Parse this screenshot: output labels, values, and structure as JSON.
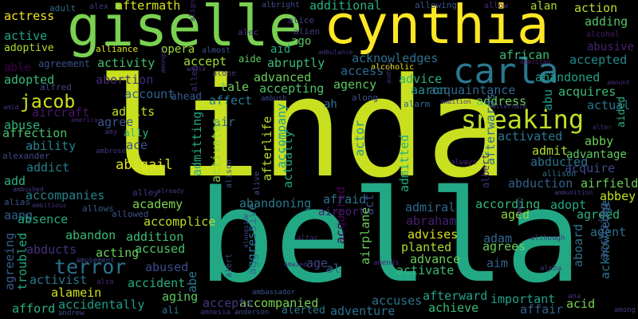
{
  "words": [
    {
      "text": "linda",
      "color": "#c8e020"
    },
    {
      "text": "bella",
      "color": "#22a884"
    },
    {
      "text": "giselle",
      "color": "#7ad151"
    },
    {
      "text": "cynthia",
      "color": "#fde725"
    },
    {
      "text": "carla",
      "color": "#2a788e"
    },
    {
      "text": "sneaking",
      "color": "#bddf26"
    },
    {
      "text": "jacob",
      "color": "#d0e11c"
    },
    {
      "text": "terror",
      "color": "#2c728e"
    },
    {
      "text": "abigail",
      "color": "#e5e419"
    },
    {
      "text": "aftermath",
      "color": "#d8e219"
    },
    {
      "text": "additional",
      "color": "#29af7f"
    },
    {
      "text": "action",
      "color": "#b5de2b"
    },
    {
      "text": "adding",
      "color": "#52c569"
    },
    {
      "text": "actress",
      "color": "#f1e51d"
    },
    {
      "text": "adult",
      "color": "#2e6e8e"
    },
    {
      "text": "alex",
      "color": "#443983"
    },
    {
      "text": "albright",
      "color": "#3e4a89"
    },
    {
      "text": "allowing",
      "color": "#3b528b"
    },
    {
      "text": "allow",
      "color": "#472c7a"
    },
    {
      "text": "alan",
      "color": "#a8db34"
    },
    {
      "text": "active",
      "color": "#21a685"
    },
    {
      "text": "adoptive",
      "color": "#b0dd2f"
    },
    {
      "text": "alliance",
      "color": "#e2e418"
    },
    {
      "text": "almost",
      "color": "#3b528b"
    },
    {
      "text": "alec",
      "color": "#46337e"
    },
    {
      "text": "alien",
      "color": "#443a83"
    },
    {
      "text": "ago",
      "color": "#5ec962"
    },
    {
      "text": "opera",
      "color": "#9fda3a"
    },
    {
      "text": "aid",
      "color": "#25ab82"
    },
    {
      "text": "african",
      "color": "#3dbc74"
    },
    {
      "text": "abusive",
      "color": "#482173"
    },
    {
      "text": "alcohol",
      "color": "#481a6c"
    },
    {
      "text": "able",
      "color": "#440154"
    },
    {
      "text": "agreement",
      "color": "#3b518b"
    },
    {
      "text": "activity",
      "color": "#46c06f"
    },
    {
      "text": "accept",
      "color": "#a2da37"
    },
    {
      "text": "aide",
      "color": "#5cc863"
    },
    {
      "text": "abruptly",
      "color": "#3dbc74"
    },
    {
      "text": "acknowledges",
      "color": "#2c718e"
    },
    {
      "text": "accepted",
      "color": "#228c8d"
    },
    {
      "text": "ambulance",
      "color": "#46337f"
    },
    {
      "text": "alcoholic",
      "color": "#f1e51d"
    },
    {
      "text": "american",
      "color": "#482475"
    },
    {
      "text": "abandoned",
      "color": "#1fa188"
    },
    {
      "text": "adopted",
      "color": "#3aba76"
    },
    {
      "text": "abortion",
      "color": "#482979"
    },
    {
      "text": "advanced",
      "color": "#6ccd5a"
    },
    {
      "text": "access",
      "color": "#2f6c8e"
    },
    {
      "text": "advice",
      "color": "#2ab07f"
    },
    {
      "text": "alfred",
      "color": "#3f4889"
    },
    {
      "text": "account",
      "color": "#33628d"
    },
    {
      "text": "ahead",
      "color": "#38598c"
    },
    {
      "text": "tale",
      "color": "#6ece58"
    },
    {
      "text": "accepting",
      "color": "#50c46a"
    },
    {
      "text": "agency",
      "color": "#5ec962"
    },
    {
      "text": "aaron",
      "color": "#21918c"
    },
    {
      "text": "acquaintance",
      "color": "#31688e"
    },
    {
      "text": "abu",
      "color": "#1e9b8a"
    },
    {
      "text": "abuse",
      "color": "#2db27d"
    },
    {
      "text": "aircraft",
      "color": "#48186a"
    },
    {
      "text": "admits",
      "color": "#c2df23"
    },
    {
      "text": "affect",
      "color": "#2a778e"
    },
    {
      "text": "air",
      "color": "#31688e"
    },
    {
      "text": "alarm",
      "color": "#2f6b8e"
    },
    {
      "text": "ambition",
      "color": "#462f7e"
    },
    {
      "text": "ah",
      "color": "#2c728e"
    },
    {
      "text": "along",
      "color": "#3b518b"
    },
    {
      "text": "address",
      "color": "#6ccd5a"
    },
    {
      "text": "acquires",
      "color": "#3dbc74"
    },
    {
      "text": "actual",
      "color": "#2c738e"
    },
    {
      "text": "aided",
      "color": "#28ae80"
    },
    {
      "text": "affection",
      "color": "#4ac16d"
    },
    {
      "text": "agree",
      "color": "#3a548c"
    },
    {
      "text": "ally",
      "color": "#35b779"
    },
    {
      "text": "amy",
      "color": "#462f7e"
    },
    {
      "text": "ace",
      "color": "#3b518b"
    },
    {
      "text": "activated",
      "color": "#2a788e"
    },
    {
      "text": "abby",
      "color": "#6ece58"
    },
    {
      "text": "afterwards",
      "color": "#31688e"
    },
    {
      "text": "alter",
      "color": "#472f7d"
    },
    {
      "text": "ability",
      "color": "#26828e"
    },
    {
      "text": "alexander",
      "color": "#3f4889"
    },
    {
      "text": "ambrose",
      "color": "#453781"
    },
    {
      "text": "actor",
      "color": "#21918c"
    },
    {
      "text": "admit",
      "color": "#b5de2b"
    },
    {
      "text": "advantage",
      "color": "#5ec962"
    },
    {
      "text": "abducted",
      "color": "#2c728e"
    },
    {
      "text": "addict",
      "color": "#277f8e"
    },
    {
      "text": "admitting",
      "color": "#22a884"
    },
    {
      "text": "activates",
      "color": "#95d840"
    },
    {
      "text": "afterlife",
      "color": "#b8de29"
    },
    {
      "text": "accompany",
      "color": "#1f9e89"
    },
    {
      "text": "admitted",
      "color": "#26ad81"
    },
    {
      "text": "allison",
      "color": "#2d708e"
    },
    {
      "text": "acquire",
      "color": "#3e4a89"
    },
    {
      "text": "add",
      "color": "#2db27d"
    },
    {
      "text": "always",
      "color": "#472a7a"
    },
    {
      "text": "abduction",
      "color": "#34608d"
    },
    {
      "text": "airfield",
      "color": "#6ccd5a"
    },
    {
      "text": "ambushed",
      "color": "#453882"
    },
    {
      "text": "accompanies",
      "color": "#26828e"
    },
    {
      "text": "alley",
      "color": "#453781"
    },
    {
      "text": "already",
      "color": "#453781"
    },
    {
      "text": "alison",
      "color": "#3b528b"
    },
    {
      "text": "actually",
      "color": "#22a884"
    },
    {
      "text": "afraid",
      "color": "#2c728e"
    },
    {
      "text": "albert",
      "color": "#472c7a"
    },
    {
      "text": "ammunition",
      "color": "#453781"
    },
    {
      "text": "abbey",
      "color": "#c5e021"
    },
    {
      "text": "alias",
      "color": "#3b528b"
    },
    {
      "text": "ambitious",
      "color": "#46307e"
    },
    {
      "text": "allows",
      "color": "#38598c"
    },
    {
      "text": "academy",
      "color": "#7fd34e"
    },
    {
      "text": "abandoning",
      "color": "#2a788e"
    },
    {
      "text": "admiral",
      "color": "#31688e"
    },
    {
      "text": "according",
      "color": "#35b779"
    },
    {
      "text": "adopt",
      "color": "#22a884"
    },
    {
      "text": "aang",
      "color": "#365c8d"
    },
    {
      "text": "allowed",
      "color": "#3b528b"
    },
    {
      "text": "airport",
      "color": "#482173"
    },
    {
      "text": "act",
      "color": "#3e4a89"
    },
    {
      "text": "abraham",
      "color": "#481f70"
    },
    {
      "text": "aged",
      "color": "#8fd744"
    },
    {
      "text": "agreed",
      "color": "#2db27d"
    },
    {
      "text": "absence",
      "color": "#25ab82"
    },
    {
      "text": "accomplice",
      "color": "#bddf26"
    },
    {
      "text": "acquired",
      "color": "#440154"
    },
    {
      "text": "agent",
      "color": "#2c728e"
    },
    {
      "text": "abandon",
      "color": "#3aba76"
    },
    {
      "text": "addition",
      "color": "#3dbc74"
    },
    {
      "text": "advises",
      "color": "#d8e219"
    },
    {
      "text": "adam",
      "color": "#31688e"
    },
    {
      "text": "agrees",
      "color": "#6ccd5a"
    },
    {
      "text": "acknowledge",
      "color": "#2c728e"
    },
    {
      "text": "although",
      "color": "#46337e"
    },
    {
      "text": "altar",
      "color": "#472c7a"
    },
    {
      "text": "abducts",
      "color": "#46307e"
    },
    {
      "text": "acting",
      "color": "#6ccd5a"
    },
    {
      "text": "accused",
      "color": "#4ac16d"
    },
    {
      "text": "planted",
      "color": "#a8db34"
    },
    {
      "text": "advance",
      "color": "#6ccd5a"
    },
    {
      "text": "aboard",
      "color": "#2d708e"
    },
    {
      "text": "amusement",
      "color": "#3e4a89"
    },
    {
      "text": "agreeing",
      "color": "#365c8d"
    },
    {
      "text": "troubled",
      "color": "#22a884"
    },
    {
      "text": "abused",
      "color": "#3e4a89"
    },
    {
      "text": "aggressive",
      "color": "#2c728e"
    },
    {
      "text": "age",
      "color": "#404688"
    },
    {
      "text": "al",
      "color": "#31688e"
    },
    {
      "text": "airplane",
      "color": "#6ccd5a"
    },
    {
      "text": "activate",
      "color": "#3aba76"
    },
    {
      "text": "aim",
      "color": "#34608d"
    },
    {
      "text": "accusing",
      "color": "#3b528b"
    },
    {
      "text": "alpha",
      "color": "#463480"
    },
    {
      "text": "activist",
      "color": "#2a788e"
    },
    {
      "text": "also",
      "color": "#472c7a"
    },
    {
      "text": "accident",
      "color": "#26ad81"
    },
    {
      "text": "alert",
      "color": "#3e4a89"
    },
    {
      "text": "amends",
      "color": "#482878"
    },
    {
      "text": "alamein",
      "color": "#d2e21b"
    },
    {
      "text": "aging",
      "color": "#5ec962"
    },
    {
      "text": "abe",
      "color": "#2a788e"
    },
    {
      "text": "ambassador",
      "color": "#3b528b"
    },
    {
      "text": "accompanied",
      "color": "#7ad151"
    },
    {
      "text": "afford",
      "color": "#2db27d"
    },
    {
      "text": "accidentally",
      "color": "#1f9e89"
    },
    {
      "text": "accepts",
      "color": "#453781"
    },
    {
      "text": "accuses",
      "color": "#2c728e"
    },
    {
      "text": "afterward",
      "color": "#20a386"
    },
    {
      "text": "important",
      "color": "#1fa088"
    },
    {
      "text": "acid",
      "color": "#7ad151"
    },
    {
      "text": "affair",
      "color": "#34618d"
    },
    {
      "text": "ana",
      "color": "#46337f"
    },
    {
      "text": "among",
      "color": "#453781"
    },
    {
      "text": "andrew",
      "color": "#3f4889"
    },
    {
      "text": "ali",
      "color": "#2c728e"
    },
    {
      "text": "amnesia",
      "color": "#453781"
    },
    {
      "text": "anderson",
      "color": "#3e4a89"
    },
    {
      "text": "alerted",
      "color": "#2a788e"
    },
    {
      "text": "adventure",
      "color": "#2c728e"
    },
    {
      "text": "achieve",
      "color": "#3aba76"
    },
    {
      "text": "alice",
      "color": "#433d84"
    },
    {
      "text": "align",
      "color": "#482475"
    },
    {
      "text": "andie",
      "color": "#46337e"
    },
    {
      "text": "allen",
      "color": "#472c7a"
    },
    {
      "text": "alone",
      "color": "#46337e"
    },
    {
      "text": "amid",
      "color": "#46337e"
    },
    {
      "text": "america",
      "color": "#482475"
    },
    {
      "text": "amongst",
      "color": "#46337f"
    },
    {
      "text": "ambush",
      "color": "#3e4a89"
    },
    {
      "text": "alternate",
      "color": "#463480"
    },
    {
      "text": "amount",
      "color": "#472c7a"
    },
    {
      "text": "andrea",
      "color": "#46337e"
    },
    {
      "text": "alive",
      "color": "#3b528b"
    },
    {
      "text": "alongside",
      "color": "#404688"
    },
    {
      "text": "amazed",
      "color": "#472f7d"
    },
    {
      "text": "amber",
      "color": "#46337e"
    }
  ]
}
